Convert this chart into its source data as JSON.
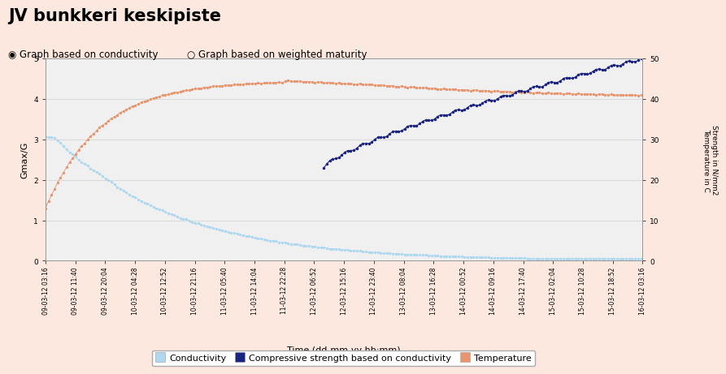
{
  "title": "JV bunkkeri keskipiste",
  "radio1": "Graph based on conductivity",
  "radio2": "Graph based on weighted maturity",
  "xlabel": "Time (dd-mm-yy hh:mm)",
  "ylabel_left": "Gmax/G",
  "ylabel_right": "Strength in N/mm2\nTemperature in C",
  "background_color": "#fce8df",
  "plot_bg_color": "#f0f0f0",
  "ylim_left": [
    0,
    5
  ],
  "ylim_right": [
    0,
    50
  ],
  "yticks_left": [
    0,
    1,
    2,
    3,
    4,
    5
  ],
  "yticks_right": [
    0,
    10,
    20,
    30,
    40,
    50
  ],
  "x_labels": [
    "09-03-12 03:16",
    "09-03-12 11:40",
    "09-03-12 20:04",
    "10-03-12 04:28",
    "10-03-12 12:52",
    "10-03-12 21:16",
    "11-03-12 05:40",
    "11-03-12 14:04",
    "11-03-12 22:28",
    "12-03-12 06:52",
    "12-03-12 15:16",
    "12-03-12 23:40",
    "13-03-12 08:04",
    "13-03-12 16:28",
    "14-03-12 00:52",
    "14-03-12 09:16",
    "14-03-12 17:40",
    "15-03-12 02:04",
    "15-03-12 10:28",
    "15-03-12 18:52",
    "16-03-12 03:16"
  ],
  "conductivity_color": "#add8f0",
  "compressive_color": "#1a237e",
  "temperature_color": "#e8956d",
  "legend_labels": [
    "Conductivity",
    "Compressive strength based on conductivity",
    "Temperature"
  ],
  "title_fontsize": 15,
  "title_fontweight": "bold",
  "axis_label_fontsize": 8,
  "tick_fontsize": 6.5,
  "legend_fontsize": 8
}
